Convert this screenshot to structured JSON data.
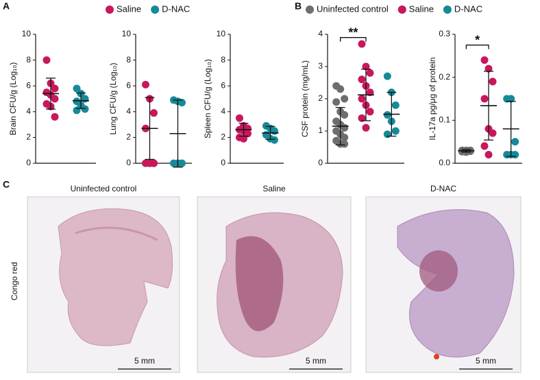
{
  "panel_labels": {
    "A": "A",
    "B": "B"
  },
  "chart_data": [
    {
      "type": "dot",
      "ylabel": "Brain CFU/g (Log₁₀)",
      "ylim": [
        0,
        10
      ],
      "yticks": [
        0,
        2,
        4,
        6,
        8,
        10
      ],
      "series": [
        {
          "name": "Saline",
          "color": "#c8175d",
          "values": [
            8.0,
            6.2,
            5.8,
            5.5,
            5.3,
            5.0,
            4.6,
            4.4,
            3.6
          ],
          "mean": 5.4,
          "sd": 1.2
        },
        {
          "name": "D-NAC",
          "color": "#168a99",
          "values": [
            5.8,
            5.4,
            5.0,
            4.8,
            4.5,
            4.2,
            4.1
          ],
          "mean": 4.85,
          "sd": 0.6
        }
      ]
    },
    {
      "type": "dot",
      "ylabel": "Lung CFU/g (Log₁₀)",
      "ylim": [
        0,
        10
      ],
      "yticks": [
        0,
        2,
        4,
        6,
        8,
        10
      ],
      "series": [
        {
          "color": "#c8175d",
          "values": [
            6.1,
            5.0,
            3.9,
            2.7,
            0,
            0,
            0,
            0,
            0
          ],
          "mean": 2.7,
          "sd": 2.4
        },
        {
          "color": "#168a99",
          "values": [
            4.9,
            4.8,
            4.7,
            0,
            0,
            0
          ],
          "mean": 2.3,
          "sd": 2.6
        }
      ]
    },
    {
      "type": "dot",
      "ylabel": "Spleen CFU/g (Log₁₀)",
      "ylim": [
        0,
        10
      ],
      "yticks": [
        0,
        2,
        4,
        6,
        8,
        10
      ],
      "series": [
        {
          "color": "#c8175d",
          "values": [
            3.5,
            2.9,
            2.7,
            2.6,
            2.5,
            2.3,
            2.0,
            1.9
          ],
          "mean": 2.6,
          "sd": 0.5
        },
        {
          "color": "#168a99",
          "values": [
            2.9,
            2.7,
            2.5,
            2.2,
            1.9,
            1.8
          ],
          "mean": 2.35,
          "sd": 0.5
        }
      ]
    },
    {
      "type": "dot",
      "ylabel": "CSF protein (mg/mL)",
      "ylim": [
        0,
        4
      ],
      "yticks": [
        0,
        1,
        2,
        3,
        4
      ],
      "annotation": {
        "text": "**",
        "y": 3.9
      },
      "series": [
        {
          "name": "Uninfected control",
          "color": "#6e6e6e",
          "values": [
            2.4,
            2.3,
            2.0,
            1.9,
            1.6,
            1.5,
            1.3,
            1.2,
            1.1,
            1.0,
            0.9,
            0.8,
            0.7,
            0.6,
            0.6
          ],
          "mean": 1.15,
          "sd": 0.58
        },
        {
          "name": "Saline",
          "color": "#c8175d",
          "values": [
            3.7,
            3.0,
            2.8,
            2.6,
            2.4,
            2.2,
            2.0,
            1.8,
            1.6,
            1.4,
            1.1
          ],
          "mean": 2.12,
          "sd": 0.8
        },
        {
          "name": "D-NAC",
          "color": "#168a99",
          "values": [
            2.7,
            2.2,
            1.8,
            1.5,
            1.3,
            1.0,
            0.9
          ],
          "mean": 1.52,
          "sd": 0.68
        }
      ]
    },
    {
      "type": "dot",
      "ylabel": "IL-17a pg/μg of protein",
      "ylim": [
        0,
        0.3
      ],
      "yticks": [
        {
          "value": 0,
          "label": "0.0"
        },
        0.1,
        0.2,
        0.3
      ],
      "annotation": {
        "text": "*",
        "y": 0.275
      },
      "series": [
        {
          "color": "#6e6e6e",
          "values": [
            0.03,
            0.03,
            0.028,
            0.027,
            0.026,
            0.03
          ],
          "mean": 0.029,
          "sd": 0.003
        },
        {
          "color": "#c8175d",
          "values": [
            0.24,
            0.22,
            0.19,
            0.15,
            0.08,
            0.07,
            0.04,
            0.02
          ],
          "mean": 0.134,
          "sd": 0.08
        },
        {
          "color": "#168a99",
          "values": [
            0.15,
            0.15,
            0.05,
            0.02,
            0.02,
            0.02
          ],
          "mean": 0.08,
          "sd": 0.064
        }
      ]
    }
  ],
  "histology": {
    "label": "C",
    "stain": "Congo red",
    "panels": [
      {
        "title": "Uninfected control",
        "scale": "5 mm"
      },
      {
        "title": "Saline",
        "scale": "5 mm"
      },
      {
        "title": "D-NAC",
        "scale": "5 mm"
      }
    ]
  }
}
